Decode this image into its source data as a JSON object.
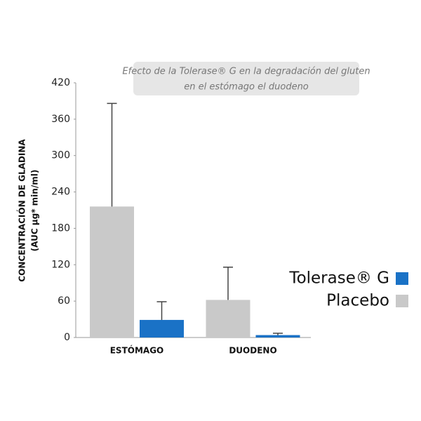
{
  "chart_data": {
    "type": "bar",
    "title": [
      "Efecto de la Tolerase® G en la degradación del gluten",
      "en el estómago el duodeno"
    ],
    "ylabel": [
      "CONCENTRACIÓN DE GLADINA",
      "(AUC µg* min/ml)"
    ],
    "categories": [
      "ESTÓMAGO",
      "DUODENO"
    ],
    "series": [
      {
        "name": "Tolerase® G",
        "color": "#1a72c6",
        "values": [
          29,
          4
        ],
        "errors": [
          30,
          3
        ]
      },
      {
        "name": "Placebo",
        "color": "#c9c9c9",
        "values": [
          216,
          62
        ],
        "errors": [
          170,
          54
        ]
      }
    ],
    "ylim": [
      0,
      420
    ],
    "yticks": [
      0,
      60,
      120,
      180,
      240,
      300,
      360,
      420
    ],
    "grid": false
  }
}
